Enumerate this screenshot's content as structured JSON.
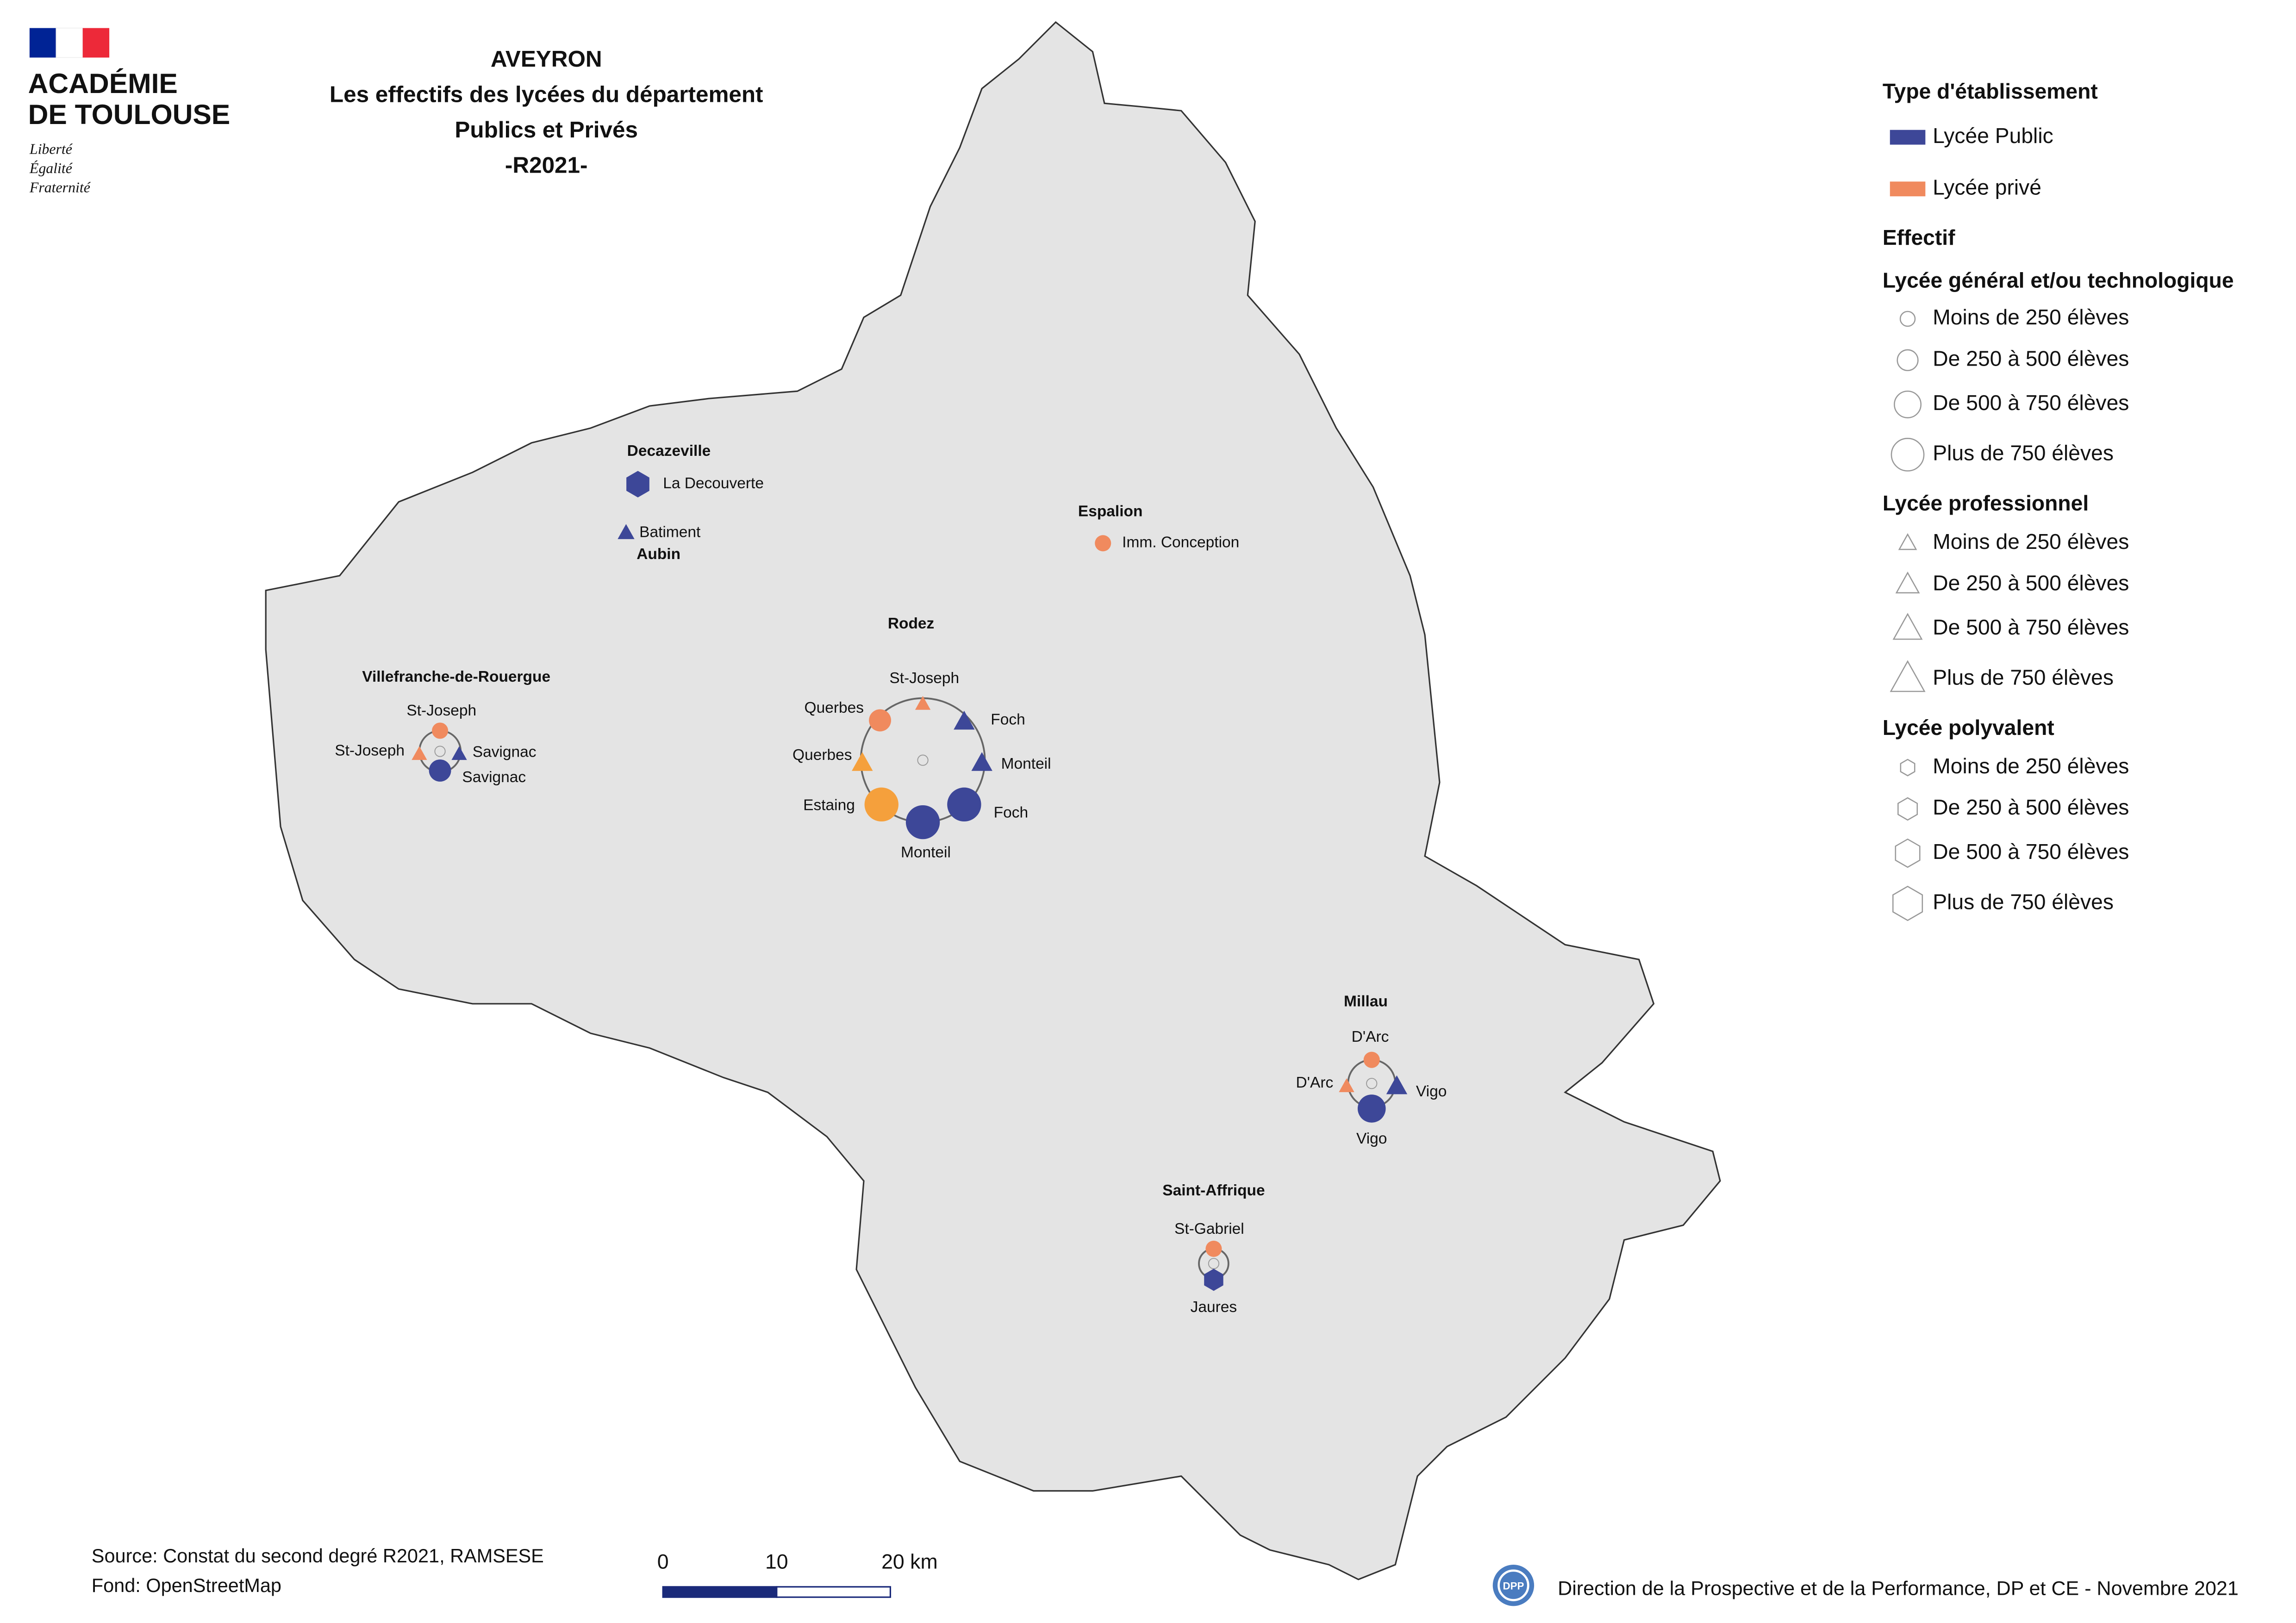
{
  "header": {
    "logo": [
      "ACADÉMIE",
      "DE TOULOUSE"
    ],
    "motto": [
      "Liberté",
      "Égalité",
      "Fraternité"
    ]
  },
  "title": [
    "AVEYRON",
    "Les effectifs des lycées du département",
    "Publics et Privés",
    "-R2021-"
  ],
  "legend": {
    "type_title": "Type d'établissement",
    "types": [
      "Lycée Public",
      "Lycée privé"
    ],
    "effectif": "Effectif",
    "groups": [
      {
        "title": "Lycée général et/ou technologique",
        "items": [
          "Moins de 250 élèves",
          "De 250 à 500 élèves",
          "De 500 à 750 élèves",
          "Plus de 750 élèves"
        ]
      },
      {
        "title": "Lycée professionnel",
        "items": [
          "Moins de 250 élèves",
          "De 250 à 500 élèves",
          "De 500 à 750 élèves",
          "Plus de 750 élèves"
        ]
      },
      {
        "title": "Lycée polyvalent",
        "items": [
          "Moins de 250 élèves",
          "De 250 à 500 élèves",
          "De 500 à 750 élèves",
          "Plus de 750 élèves"
        ]
      }
    ]
  },
  "towns": [
    {
      "name": "Decazeville",
      "schools": [
        "La Decouverte"
      ]
    },
    {
      "name": "Aubin",
      "schools": [
        "Batiment"
      ]
    },
    {
      "name": "Espalion",
      "schools": [
        "Imm. Conception"
      ]
    },
    {
      "name": "Rodez",
      "schools": [
        "St-Joseph",
        "Querbes",
        "Foch",
        "Querbes",
        "Monteil",
        "Estaing",
        "Monteil",
        "Foch"
      ]
    },
    {
      "name": "Villefranche-de-Rouergue",
      "schools": [
        "St-Joseph",
        "St-Joseph",
        "Savignac",
        "Savignac"
      ]
    },
    {
      "name": "Millau",
      "schools": [
        "D'Arc",
        "D'Arc",
        "Vigo",
        "Vigo"
      ]
    },
    {
      "name": "Saint-Affrique",
      "schools": [
        "St-Gabriel",
        "Jaures"
      ]
    }
  ],
  "scale_bar": [
    "0",
    "10",
    "20 km"
  ],
  "footer": {
    "source": "Source: Constat du second degré R2021, RAMSESE",
    "background": "Fond: OpenStreetMap",
    "logo": "DPP",
    "credit": "Direction de la Prospective et de la Performance, DP et CE - Novembre 2021"
  }
}
